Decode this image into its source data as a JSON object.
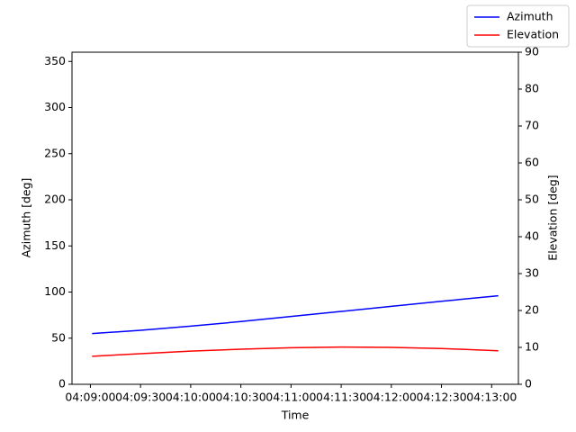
{
  "chart_data": {
    "type": "line",
    "x_label": "Time",
    "y_label": "Azimuth [deg]",
    "y2_label": "Elevation [deg]",
    "x": [
      "04:09:01",
      "04:09:30",
      "04:10:00",
      "04:10:30",
      "04:11:00",
      "04:11:30",
      "04:12:00",
      "04:12:30",
      "04:13:04"
    ],
    "series": [
      {
        "name": "Azimuth",
        "color": "#0000ff",
        "values": [
          55,
          58.5,
          63,
          68,
          73.5,
          79,
          84.5,
          90,
          96
        ]
      },
      {
        "name": "Elevation",
        "color": "#ff0000",
        "axis": "y2",
        "values": [
          7.6,
          8.3,
          9.0,
          9.5,
          9.9,
          10.1,
          10.0,
          9.7,
          9.1
        ]
      }
    ],
    "xlim": [
      "04:08:49",
      "04:13:16"
    ],
    "xticks": [
      "04:09:00",
      "04:09:30",
      "04:10:00",
      "04:10:30",
      "04:11:00",
      "04:11:30",
      "04:12:00",
      "04:12:30",
      "04:13:00"
    ],
    "ylim": [
      0,
      360
    ],
    "yticks": [
      0,
      50,
      100,
      150,
      200,
      250,
      300,
      350
    ],
    "y2lim": [
      0,
      90
    ],
    "y2ticks": [
      0,
      10,
      20,
      30,
      40,
      50,
      60,
      70,
      80,
      90
    ],
    "grid": false,
    "legend": "upper right"
  }
}
